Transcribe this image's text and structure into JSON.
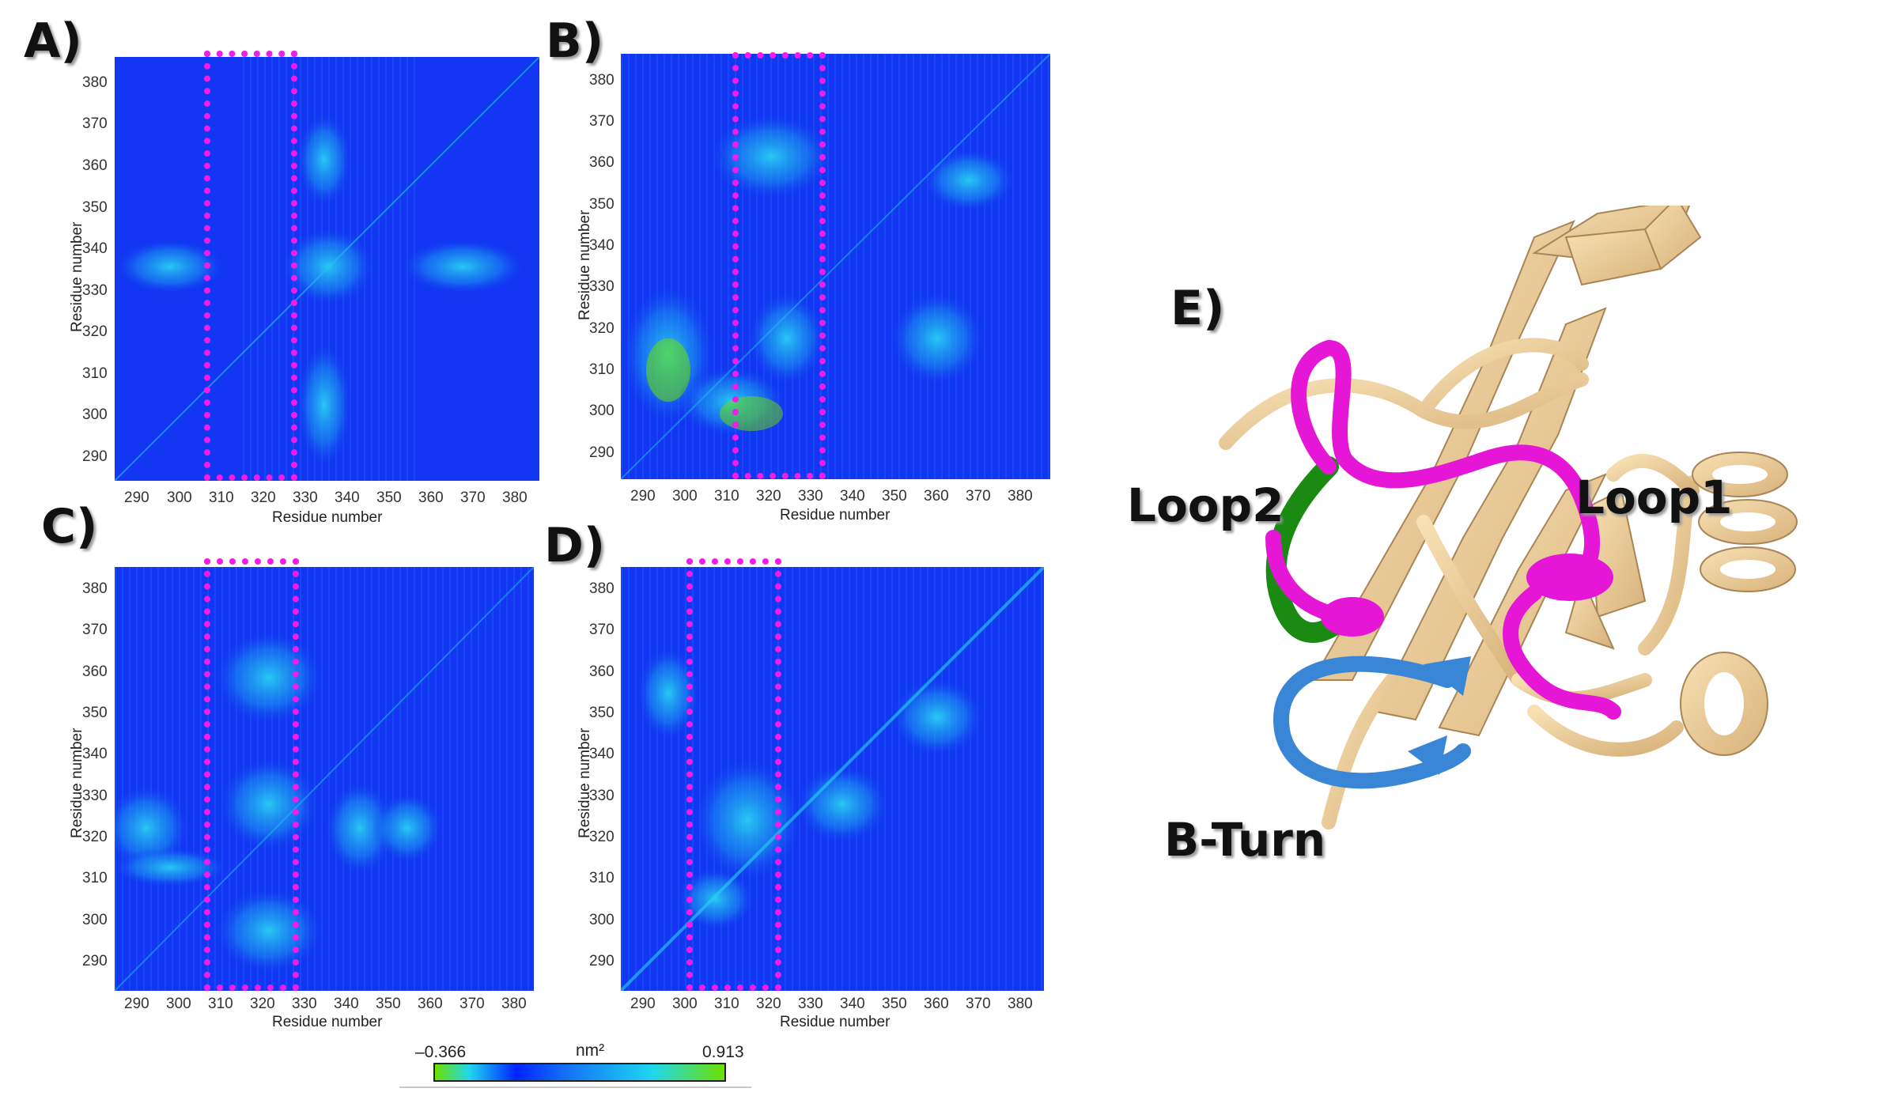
{
  "panels": [
    {
      "letter": "A)"
    },
    {
      "letter": "B)"
    },
    {
      "letter": "C)"
    },
    {
      "letter": "D)"
    }
  ],
  "axes": {
    "xlabel": "Residue number",
    "ylabel": "Residue number",
    "x_ticks": [
      "290",
      "300",
      "310",
      "320",
      "330",
      "340",
      "350",
      "360",
      "370",
      "380"
    ],
    "y_ticks": [
      "380",
      "370",
      "360",
      "350",
      "340",
      "330",
      "320",
      "310",
      "300",
      "290"
    ]
  },
  "colorbar": {
    "min_label": "–0.366",
    "max_label": "0.913",
    "unit_label": "nm²",
    "colors": [
      "#6ee000",
      "#1ed6f0",
      "#0024ff",
      "#1ed6f0",
      "#6ee000"
    ]
  },
  "structure": {
    "panel_letter": "E)",
    "labels": {
      "loop2": "Loop2",
      "loop1": "Loop1",
      "bturn": "B-Turn"
    },
    "colors": {
      "body": "#f2cf98",
      "loop1": "#e516d6",
      "loop2": "#1a8a12",
      "bturn": "#3a86d6"
    }
  },
  "highlight_color": "#f01ce8",
  "map_colors": {
    "base": "#1236f2",
    "mid": "#1a8ef0",
    "high": "#22d6f0",
    "peak": "#6ee000"
  }
}
